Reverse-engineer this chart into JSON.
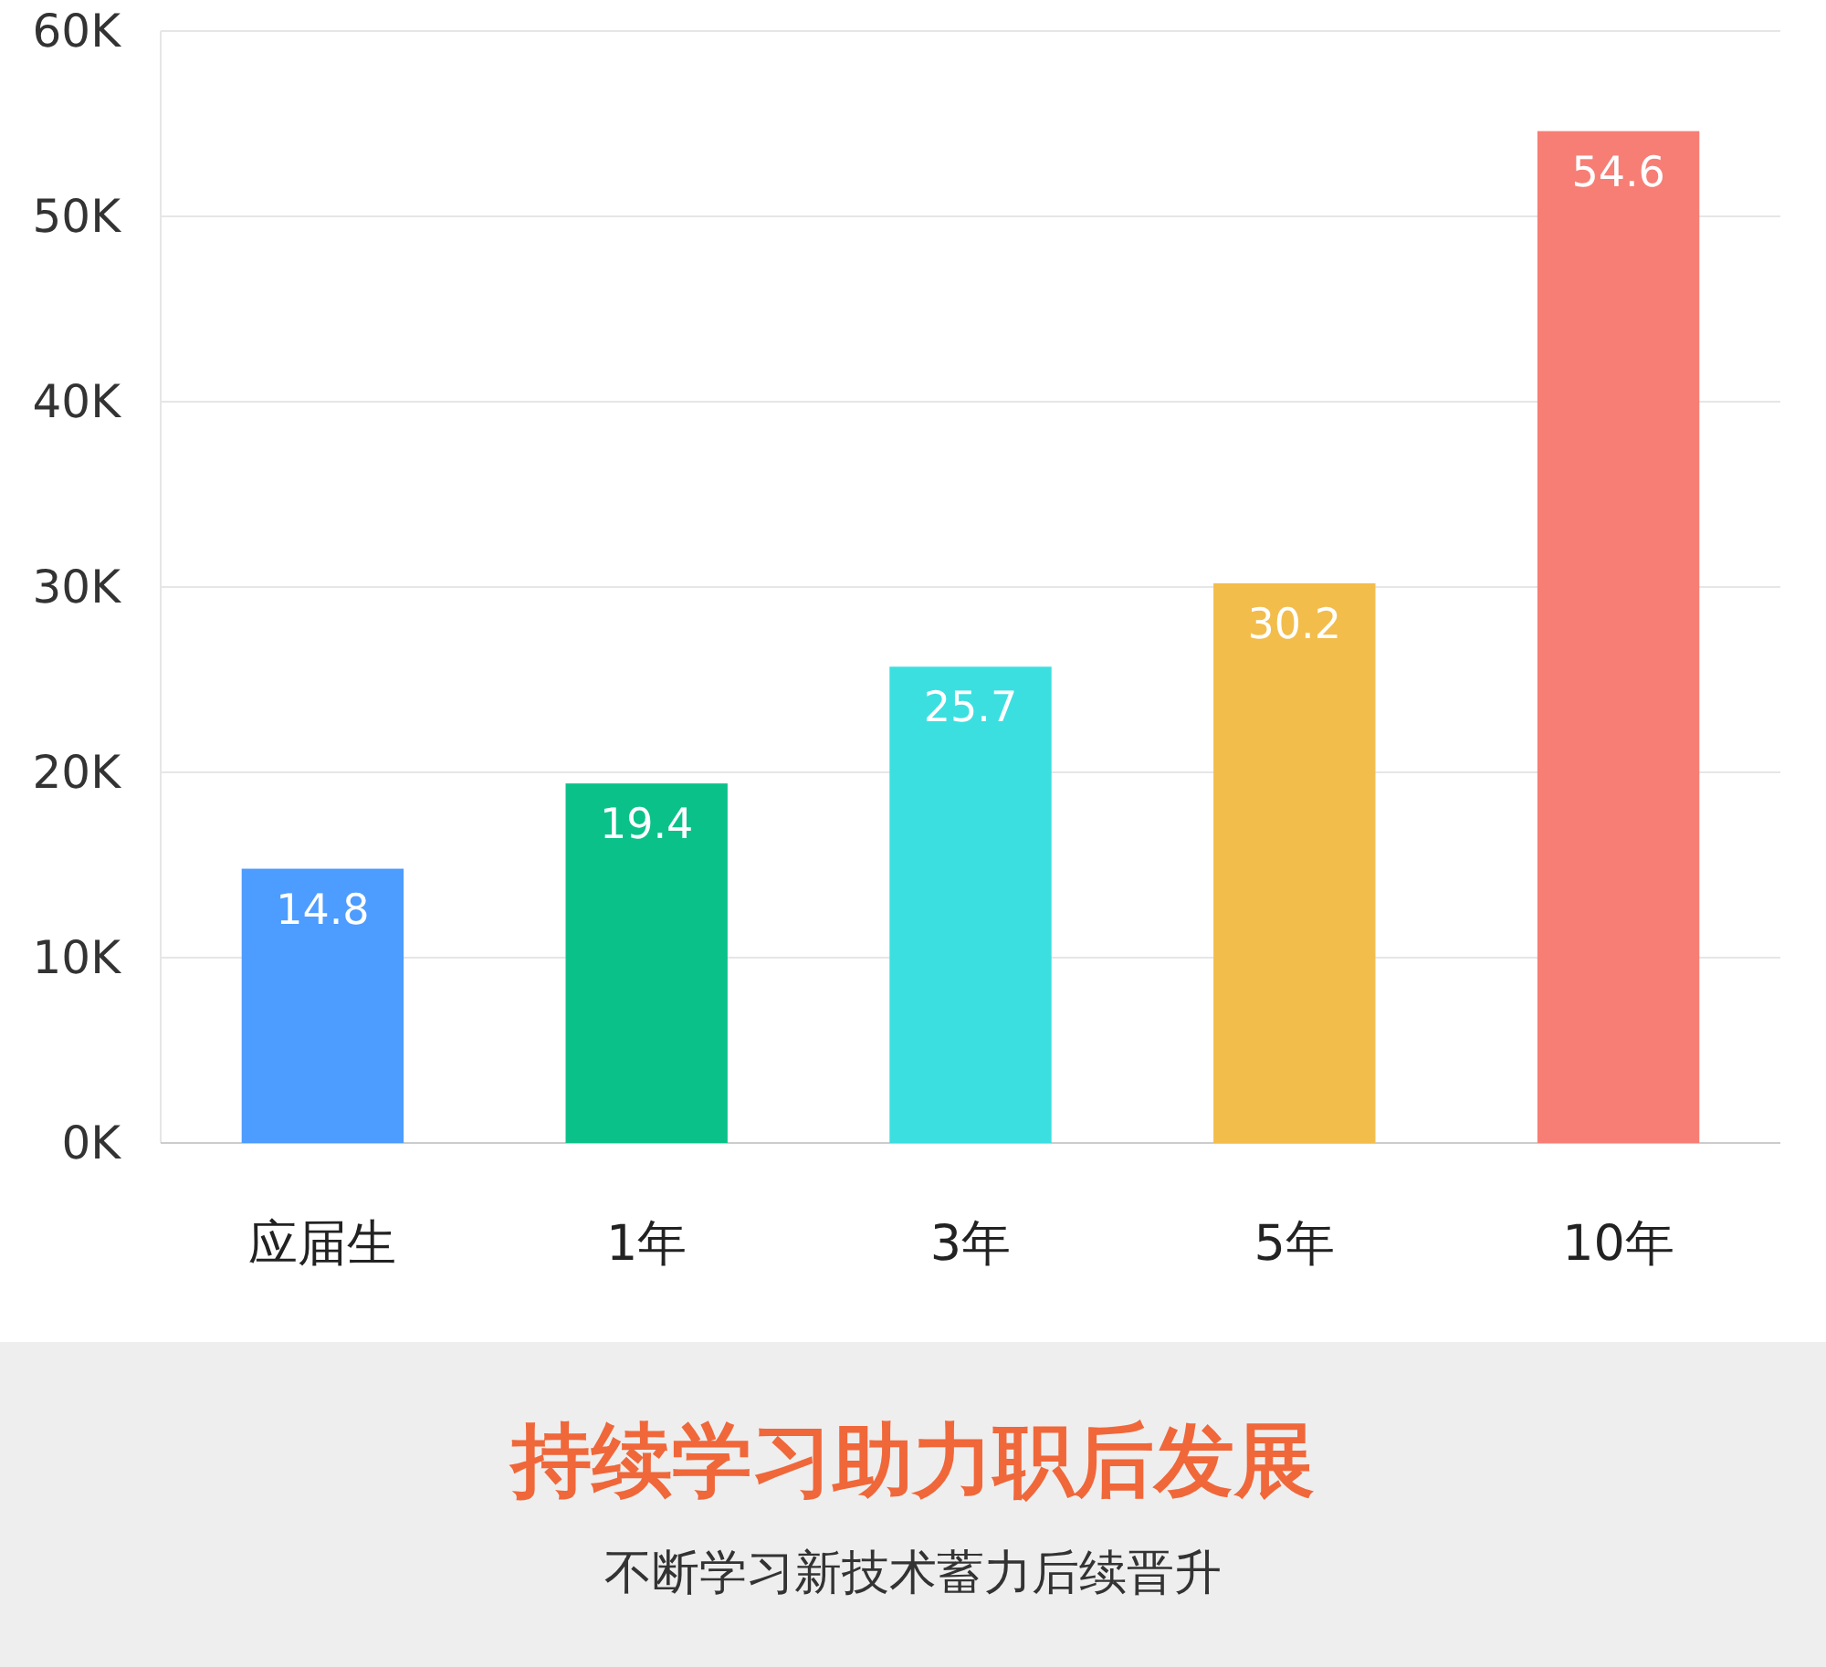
{
  "chart_data": {
    "type": "bar",
    "title": "持续学习助力职后发展",
    "subtitle": "不断学习新技术蓄力后续晋升",
    "categories": [
      "应届生",
      "1年",
      "3年",
      "5年",
      "10年"
    ],
    "values": [
      14.8,
      19.4,
      25.7,
      30.2,
      54.6
    ],
    "colors": [
      "#4d9cff",
      "#0bc18a",
      "#3bdfe0",
      "#f2bd4b",
      "#f77e75"
    ],
    "ylim": [
      0,
      60
    ],
    "yticks": [
      {
        "value": 0,
        "label": "0K"
      },
      {
        "value": 10,
        "label": "10K"
      },
      {
        "value": 20,
        "label": "20K"
      },
      {
        "value": 30,
        "label": "30K"
      },
      {
        "value": 40,
        "label": "40K"
      },
      {
        "value": 50,
        "label": "50K"
      },
      {
        "value": 60,
        "label": "60K"
      }
    ],
    "grid": "y",
    "data_labels": true
  }
}
